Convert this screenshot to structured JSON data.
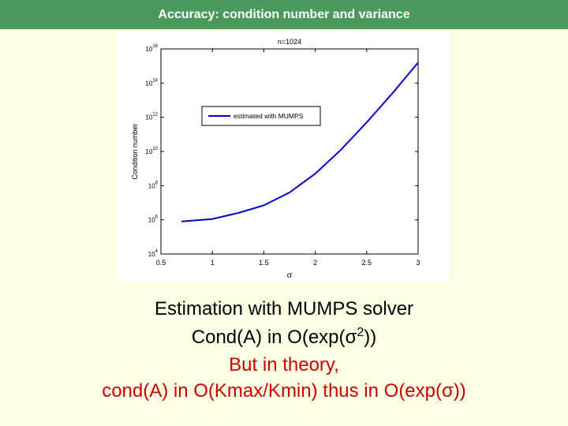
{
  "header": {
    "title": "Accuracy: condition number and variance"
  },
  "colors": {
    "header_bg": "#4a9a5e",
    "page_bg": "#ffffe6",
    "highlight": "#cc0000",
    "series": "#0000cc"
  },
  "chart_data": {
    "type": "line",
    "title": "n=1024",
    "xlabel": "σ",
    "ylabel": "Condition number",
    "xlim": [
      0.5,
      3
    ],
    "ylim_log10": [
      4,
      16
    ],
    "y_scale": "log",
    "x_ticks": [
      "0.5",
      "1",
      "1.5",
      "2",
      "2.5",
      "3"
    ],
    "x_tick_values": [
      0.5,
      1,
      1.5,
      2,
      2.5,
      3
    ],
    "y_ticks": [
      {
        "base": "10",
        "exp": "4"
      },
      {
        "base": "10",
        "exp": "6"
      },
      {
        "base": "10",
        "exp": "8"
      },
      {
        "base": "10",
        "exp": "10"
      },
      {
        "base": "10",
        "exp": "12"
      },
      {
        "base": "10",
        "exp": "14"
      },
      {
        "base": "10",
        "exp": "16"
      }
    ],
    "y_tick_values": [
      4,
      6,
      8,
      10,
      12,
      14,
      16
    ],
    "legend_position": "upper-left",
    "grid": false,
    "series": [
      {
        "name": "estimated with MUMPS",
        "x": [
          0.7,
          1.0,
          1.25,
          1.5,
          1.75,
          2.0,
          2.25,
          2.5,
          2.75,
          3.0
        ],
        "log10_y": [
          5.9,
          6.05,
          6.4,
          6.85,
          7.6,
          8.7,
          10.1,
          11.7,
          13.4,
          15.2
        ]
      }
    ]
  },
  "caption": {
    "line1": "Estimation with MUMPS solver",
    "line2_prefix": "Cond(A) in O(exp(",
    "line2_sigma": "σ",
    "line2_sup": "2",
    "line2_suffix": "))",
    "line3": "But in theory,",
    "line4_prefix": "cond(A) in O(Kmax/Kmin) thus in O(exp(",
    "line4_sigma": "σ",
    "line4_suffix": "))"
  }
}
